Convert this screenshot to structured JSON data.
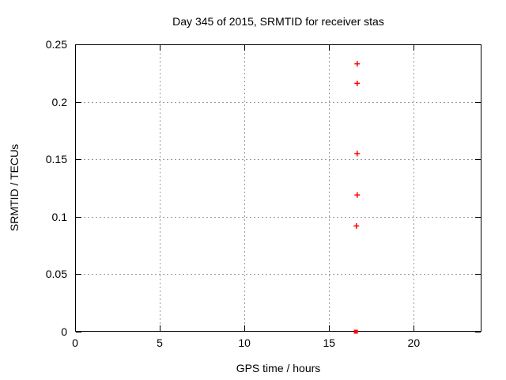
{
  "figure": {
    "background": "#ffffff",
    "colors": {
      "axis": "#000000",
      "grid": "#9a9a9a",
      "text": "#000000"
    }
  },
  "chart_data": {
    "type": "scatter",
    "title": "Day 345 of 2015, SRMTID for receiver stas",
    "xlabel": "GPS time / hours",
    "ylabel": "SRMTID / TECUs",
    "xlim": [
      0,
      24
    ],
    "ylim": [
      0,
      0.25
    ],
    "xticks": [
      0,
      5,
      10,
      15,
      20
    ],
    "xtick_labels": [
      "0",
      "5",
      "10",
      "15",
      "20"
    ],
    "yticks": [
      0,
      0.05,
      0.1,
      0.15,
      0.2,
      0.25
    ],
    "ytick_labels": [
      "0",
      "0.05",
      "0.1",
      "0.15",
      "0.2",
      "0.25"
    ],
    "grid": "dashed",
    "legend": "none",
    "series": [
      {
        "name": "srmtid-points",
        "marker": "plus",
        "color": "#ff0000",
        "points": [
          {
            "x": 16.66,
            "y": 0.233
          },
          {
            "x": 16.66,
            "y": 0.216
          },
          {
            "x": 16.66,
            "y": 0.155
          },
          {
            "x": 16.66,
            "y": 0.119
          },
          {
            "x": 16.61,
            "y": 0.092
          }
        ]
      },
      {
        "name": "srmtid-zero-cluster",
        "marker": "filled-square",
        "color": "#ff0000",
        "points": [
          {
            "x": 16.58,
            "y": 0.0
          }
        ]
      }
    ]
  }
}
